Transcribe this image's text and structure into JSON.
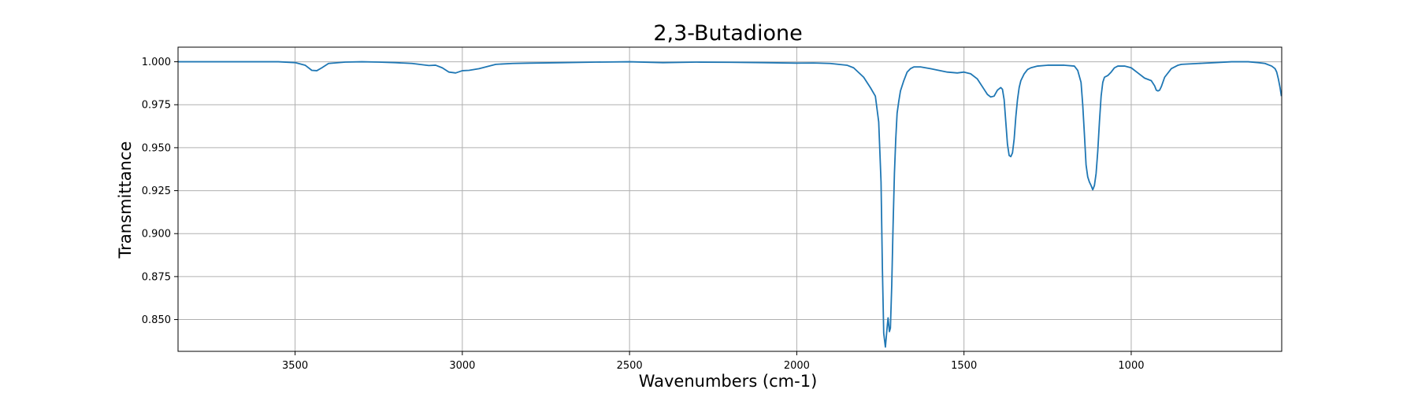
{
  "chart_data": {
    "type": "line",
    "title": "2,3-Butadione",
    "xlabel": "Wavenumbers (cm-1)",
    "ylabel": "Transmittance",
    "xlim": [
      3850,
      550
    ],
    "ylim": [
      0.8315,
      1.0085
    ],
    "x_reversed": true,
    "grid": true,
    "xticks": [
      3500,
      3000,
      2500,
      2000,
      1500,
      1000
    ],
    "xtick_labels": [
      "3500",
      "3000",
      "2500",
      "2000",
      "1500",
      "1000"
    ],
    "yticks": [
      0.85,
      0.875,
      0.9,
      0.925,
      0.95,
      0.975,
      1.0
    ],
    "ytick_labels": [
      "0.850",
      "0.875",
      "0.900",
      "0.925",
      "0.950",
      "0.975",
      "1.000"
    ],
    "colors": {
      "line": "#1f77b4",
      "grid": "#b0b0b0",
      "axes": "#000000"
    },
    "series": [
      {
        "name": "",
        "x": [
          3850,
          3800,
          3750,
          3700,
          3650,
          3600,
          3550,
          3500,
          3470,
          3450,
          3435,
          3420,
          3400,
          3350,
          3300,
          3250,
          3200,
          3150,
          3100,
          3080,
          3060,
          3040,
          3020,
          3000,
          2980,
          2950,
          2900,
          2850,
          2800,
          2700,
          2600,
          2500,
          2400,
          2300,
          2200,
          2100,
          2000,
          1950,
          1900,
          1850,
          1830,
          1800,
          1780,
          1765,
          1755,
          1748,
          1744,
          1740,
          1735,
          1730,
          1727,
          1723,
          1720,
          1716,
          1712,
          1708,
          1704,
          1700,
          1695,
          1690,
          1680,
          1670,
          1660,
          1650,
          1630,
          1600,
          1550,
          1520,
          1500,
          1480,
          1460,
          1440,
          1430,
          1420,
          1410,
          1400,
          1390,
          1385,
          1380,
          1375,
          1370,
          1365,
          1360,
          1355,
          1350,
          1345,
          1340,
          1335,
          1330,
          1320,
          1310,
          1300,
          1280,
          1250,
          1200,
          1170,
          1160,
          1150,
          1145,
          1140,
          1135,
          1130,
          1125,
          1120,
          1115,
          1110,
          1105,
          1100,
          1095,
          1090,
          1085,
          1080,
          1070,
          1060,
          1050,
          1040,
          1020,
          1000,
          980,
          960,
          940,
          930,
          925,
          920,
          915,
          910,
          900,
          880,
          860,
          850,
          800,
          750,
          700,
          650,
          620,
          600,
          580,
          570,
          565,
          560,
          555,
          551
        ],
        "y": [
          1.0,
          1.0,
          1.0,
          1.0,
          1.0,
          1.0,
          1.0,
          0.9995,
          0.998,
          0.995,
          0.9948,
          0.9965,
          0.999,
          0.9998,
          1.0,
          0.9998,
          0.9995,
          0.999,
          0.9978,
          0.998,
          0.9965,
          0.994,
          0.9935,
          0.9948,
          0.995,
          0.996,
          0.9985,
          0.999,
          0.9992,
          0.9995,
          0.9998,
          1.0,
          0.9995,
          0.9998,
          0.9997,
          0.9995,
          0.9992,
          0.9993,
          0.999,
          0.998,
          0.9965,
          0.991,
          0.985,
          0.98,
          0.965,
          0.93,
          0.88,
          0.842,
          0.834,
          0.845,
          0.851,
          0.843,
          0.845,
          0.87,
          0.905,
          0.935,
          0.955,
          0.97,
          0.977,
          0.983,
          0.989,
          0.994,
          0.996,
          0.997,
          0.997,
          0.996,
          0.994,
          0.9935,
          0.994,
          0.993,
          0.99,
          0.984,
          0.981,
          0.9795,
          0.98,
          0.9835,
          0.985,
          0.984,
          0.978,
          0.965,
          0.952,
          0.9455,
          0.9448,
          0.947,
          0.955,
          0.968,
          0.978,
          0.985,
          0.989,
          0.993,
          0.9955,
          0.9965,
          0.9975,
          0.998,
          0.998,
          0.9975,
          0.995,
          0.988,
          0.975,
          0.958,
          0.94,
          0.933,
          0.93,
          0.928,
          0.9255,
          0.928,
          0.935,
          0.948,
          0.965,
          0.98,
          0.988,
          0.991,
          0.992,
          0.994,
          0.9965,
          0.9975,
          0.9975,
          0.9965,
          0.9935,
          0.9905,
          0.989,
          0.986,
          0.9835,
          0.983,
          0.9835,
          0.9855,
          0.991,
          0.996,
          0.998,
          0.9985,
          0.999,
          0.9995,
          1.0,
          1.0,
          0.9995,
          0.999,
          0.9975,
          0.996,
          0.994,
          0.99,
          0.985,
          0.98
        ]
      }
    ]
  }
}
